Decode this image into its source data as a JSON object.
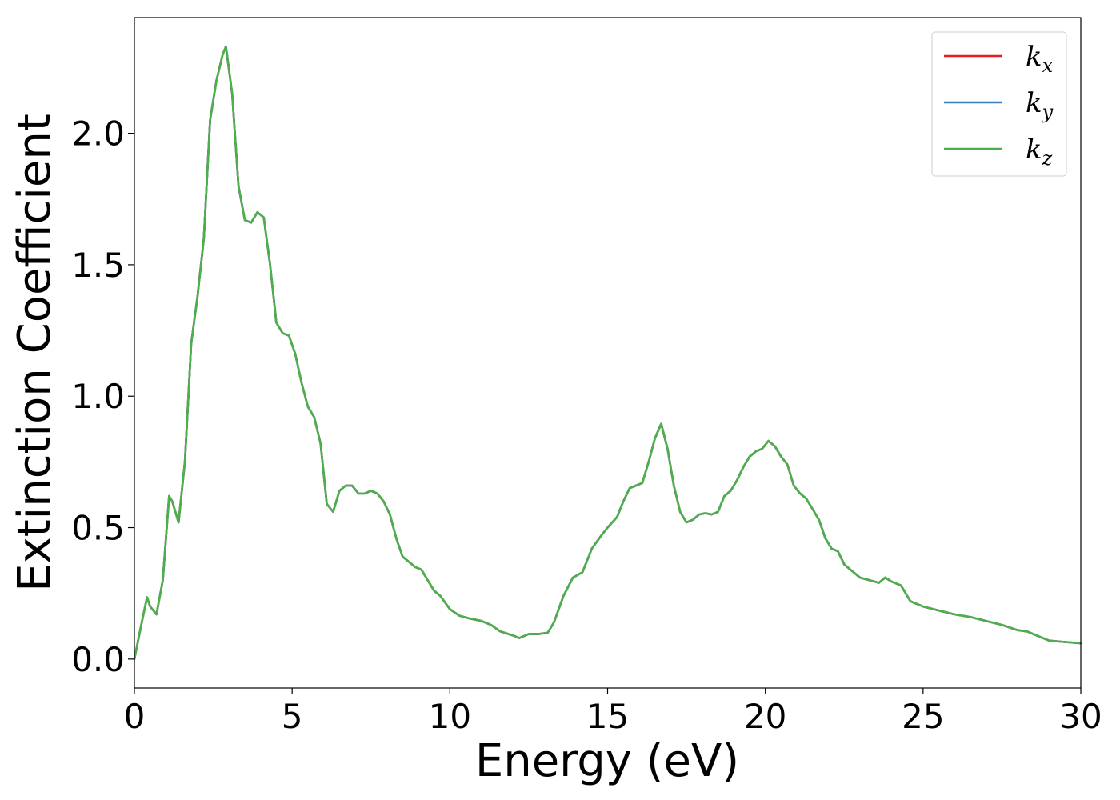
{
  "chart_data": {
    "type": "line",
    "xlabel": "Energy (eV)",
    "ylabel": "Extinction Coefficient",
    "xlim": [
      0,
      30
    ],
    "ylim": [
      -0.11,
      2.44
    ],
    "xticks": [
      0,
      5,
      10,
      15,
      20,
      25,
      30
    ],
    "yticks": [
      0.0,
      0.5,
      1.0,
      1.5,
      2.0
    ],
    "xtick_labels": [
      "0",
      "5",
      "10",
      "15",
      "20",
      "25",
      "30"
    ],
    "ytick_labels": [
      "0.0",
      "0.5",
      "1.0",
      "1.5",
      "2.0"
    ],
    "grid": false,
    "legend_position": "top-right",
    "x": [
      0,
      0.2,
      0.4,
      0.5,
      0.7,
      0.9,
      1.1,
      1.2,
      1.4,
      1.6,
      1.8,
      2.0,
      2.2,
      2.4,
      2.6,
      2.8,
      2.9,
      3.1,
      3.3,
      3.5,
      3.7,
      3.9,
      4.1,
      4.3,
      4.5,
      4.7,
      4.9,
      5.1,
      5.3,
      5.5,
      5.7,
      5.9,
      6.1,
      6.3,
      6.5,
      6.7,
      6.9,
      7.1,
      7.3,
      7.5,
      7.7,
      7.9,
      8.1,
      8.3,
      8.5,
      8.7,
      8.9,
      9.1,
      9.3,
      9.5,
      9.7,
      10.0,
      10.3,
      10.6,
      11.0,
      11.3,
      11.6,
      12.0,
      12.2,
      12.5,
      12.8,
      13.1,
      13.3,
      13.6,
      13.9,
      14.2,
      14.5,
      14.8,
      15.0,
      15.3,
      15.5,
      15.7,
      15.9,
      16.1,
      16.3,
      16.5,
      16.7,
      16.9,
      17.1,
      17.3,
      17.5,
      17.7,
      17.9,
      18.1,
      18.3,
      18.5,
      18.7,
      18.9,
      19.1,
      19.3,
      19.5,
      19.7,
      19.9,
      20.1,
      20.3,
      20.5,
      20.7,
      20.9,
      21.1,
      21.3,
      21.5,
      21.7,
      21.9,
      22.1,
      22.3,
      22.5,
      22.7,
      23.0,
      23.3,
      23.6,
      23.8,
      24.0,
      24.3,
      24.6,
      25.0,
      25.5,
      26.0,
      26.5,
      27.0,
      27.5,
      28.0,
      28.3,
      28.6,
      29.0,
      29.5,
      30.0
    ],
    "series": [
      {
        "name": "k_x",
        "color": "#e41a1c",
        "legend_base": "k",
        "legend_sub": "x",
        "values": [
          0.0,
          0.12,
          0.235,
          0.2,
          0.17,
          0.3,
          0.62,
          0.6,
          0.52,
          0.75,
          1.2,
          1.38,
          1.6,
          2.05,
          2.2,
          2.3,
          2.33,
          2.15,
          1.8,
          1.67,
          1.66,
          1.7,
          1.68,
          1.5,
          1.28,
          1.24,
          1.23,
          1.16,
          1.05,
          0.96,
          0.92,
          0.82,
          0.59,
          0.56,
          0.64,
          0.66,
          0.66,
          0.63,
          0.63,
          0.64,
          0.63,
          0.6,
          0.55,
          0.46,
          0.39,
          0.37,
          0.35,
          0.34,
          0.3,
          0.26,
          0.24,
          0.19,
          0.165,
          0.155,
          0.145,
          0.13,
          0.105,
          0.09,
          0.08,
          0.095,
          0.095,
          0.1,
          0.14,
          0.24,
          0.31,
          0.33,
          0.42,
          0.47,
          0.5,
          0.54,
          0.6,
          0.65,
          0.66,
          0.67,
          0.75,
          0.84,
          0.895,
          0.8,
          0.66,
          0.56,
          0.52,
          0.53,
          0.55,
          0.555,
          0.55,
          0.56,
          0.62,
          0.64,
          0.68,
          0.73,
          0.77,
          0.79,
          0.8,
          0.83,
          0.81,
          0.77,
          0.74,
          0.66,
          0.63,
          0.61,
          0.57,
          0.53,
          0.46,
          0.42,
          0.41,
          0.36,
          0.34,
          0.31,
          0.3,
          0.29,
          0.31,
          0.295,
          0.28,
          0.22,
          0.2,
          0.185,
          0.17,
          0.16,
          0.145,
          0.13,
          0.11,
          0.105,
          0.09,
          0.07,
          0.065,
          0.06
        ]
      },
      {
        "name": "k_y",
        "color": "#377eb8",
        "legend_base": "k",
        "legend_sub": "y",
        "values": [
          0.0,
          0.12,
          0.235,
          0.2,
          0.17,
          0.3,
          0.62,
          0.6,
          0.52,
          0.75,
          1.2,
          1.38,
          1.6,
          2.05,
          2.2,
          2.3,
          2.33,
          2.15,
          1.8,
          1.67,
          1.66,
          1.7,
          1.68,
          1.5,
          1.28,
          1.24,
          1.23,
          1.16,
          1.05,
          0.96,
          0.92,
          0.82,
          0.59,
          0.56,
          0.64,
          0.66,
          0.66,
          0.63,
          0.63,
          0.64,
          0.63,
          0.6,
          0.55,
          0.46,
          0.39,
          0.37,
          0.35,
          0.34,
          0.3,
          0.26,
          0.24,
          0.19,
          0.165,
          0.155,
          0.145,
          0.13,
          0.105,
          0.09,
          0.08,
          0.095,
          0.095,
          0.1,
          0.14,
          0.24,
          0.31,
          0.33,
          0.42,
          0.47,
          0.5,
          0.54,
          0.6,
          0.65,
          0.66,
          0.67,
          0.75,
          0.84,
          0.895,
          0.8,
          0.66,
          0.56,
          0.52,
          0.53,
          0.55,
          0.555,
          0.55,
          0.56,
          0.62,
          0.64,
          0.68,
          0.73,
          0.77,
          0.79,
          0.8,
          0.83,
          0.81,
          0.77,
          0.74,
          0.66,
          0.63,
          0.61,
          0.57,
          0.53,
          0.46,
          0.42,
          0.41,
          0.36,
          0.34,
          0.31,
          0.3,
          0.29,
          0.31,
          0.295,
          0.28,
          0.22,
          0.2,
          0.185,
          0.17,
          0.16,
          0.145,
          0.13,
          0.11,
          0.105,
          0.09,
          0.07,
          0.065,
          0.06
        ]
      },
      {
        "name": "k_z",
        "color": "#4daf4a",
        "legend_base": "k",
        "legend_sub": "z",
        "values": [
          0.0,
          0.12,
          0.235,
          0.2,
          0.17,
          0.3,
          0.62,
          0.6,
          0.52,
          0.75,
          1.2,
          1.38,
          1.6,
          2.05,
          2.2,
          2.3,
          2.33,
          2.15,
          1.8,
          1.67,
          1.66,
          1.7,
          1.68,
          1.5,
          1.28,
          1.24,
          1.23,
          1.16,
          1.05,
          0.96,
          0.92,
          0.82,
          0.59,
          0.56,
          0.64,
          0.66,
          0.66,
          0.63,
          0.63,
          0.64,
          0.63,
          0.6,
          0.55,
          0.46,
          0.39,
          0.37,
          0.35,
          0.34,
          0.3,
          0.26,
          0.24,
          0.19,
          0.165,
          0.155,
          0.145,
          0.13,
          0.105,
          0.09,
          0.08,
          0.095,
          0.095,
          0.1,
          0.14,
          0.24,
          0.31,
          0.33,
          0.42,
          0.47,
          0.5,
          0.54,
          0.6,
          0.65,
          0.66,
          0.67,
          0.75,
          0.84,
          0.895,
          0.8,
          0.66,
          0.56,
          0.52,
          0.53,
          0.55,
          0.555,
          0.55,
          0.56,
          0.62,
          0.64,
          0.68,
          0.73,
          0.77,
          0.79,
          0.8,
          0.83,
          0.81,
          0.77,
          0.74,
          0.66,
          0.63,
          0.61,
          0.57,
          0.53,
          0.46,
          0.42,
          0.41,
          0.36,
          0.34,
          0.31,
          0.3,
          0.29,
          0.31,
          0.295,
          0.28,
          0.22,
          0.2,
          0.185,
          0.17,
          0.16,
          0.145,
          0.13,
          0.11,
          0.105,
          0.09,
          0.07,
          0.065,
          0.06
        ]
      }
    ]
  }
}
